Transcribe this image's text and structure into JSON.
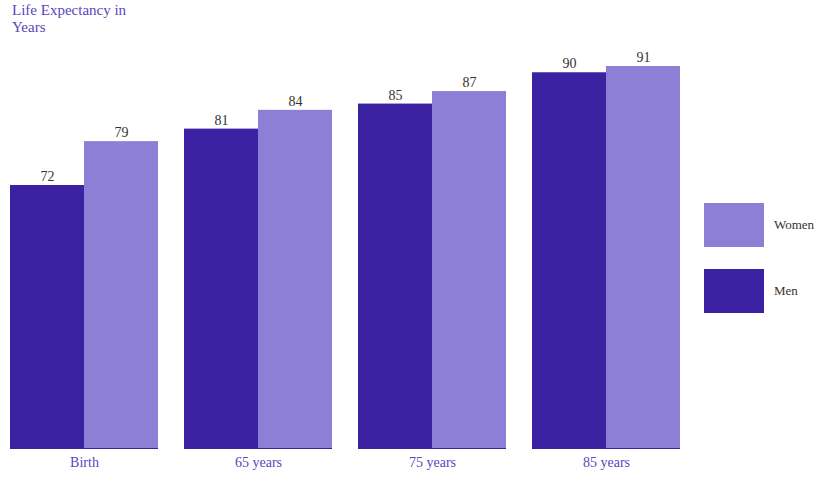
{
  "chart_data": {
    "type": "bar",
    "title": "Life Expectancy in Years",
    "categories": [
      "Birth",
      "65 years",
      "75 years",
      "85 years"
    ],
    "series": [
      {
        "name": "Men",
        "color": "#3b22a3",
        "values": [
          72,
          81,
          85,
          90
        ]
      },
      {
        "name": "Women",
        "color": "#8e7fd6",
        "values": [
          79,
          84,
          87,
          91
        ]
      }
    ],
    "ylim": [
      30,
      91
    ],
    "data_labels": true,
    "tick_labels": "x",
    "legend": "right"
  }
}
